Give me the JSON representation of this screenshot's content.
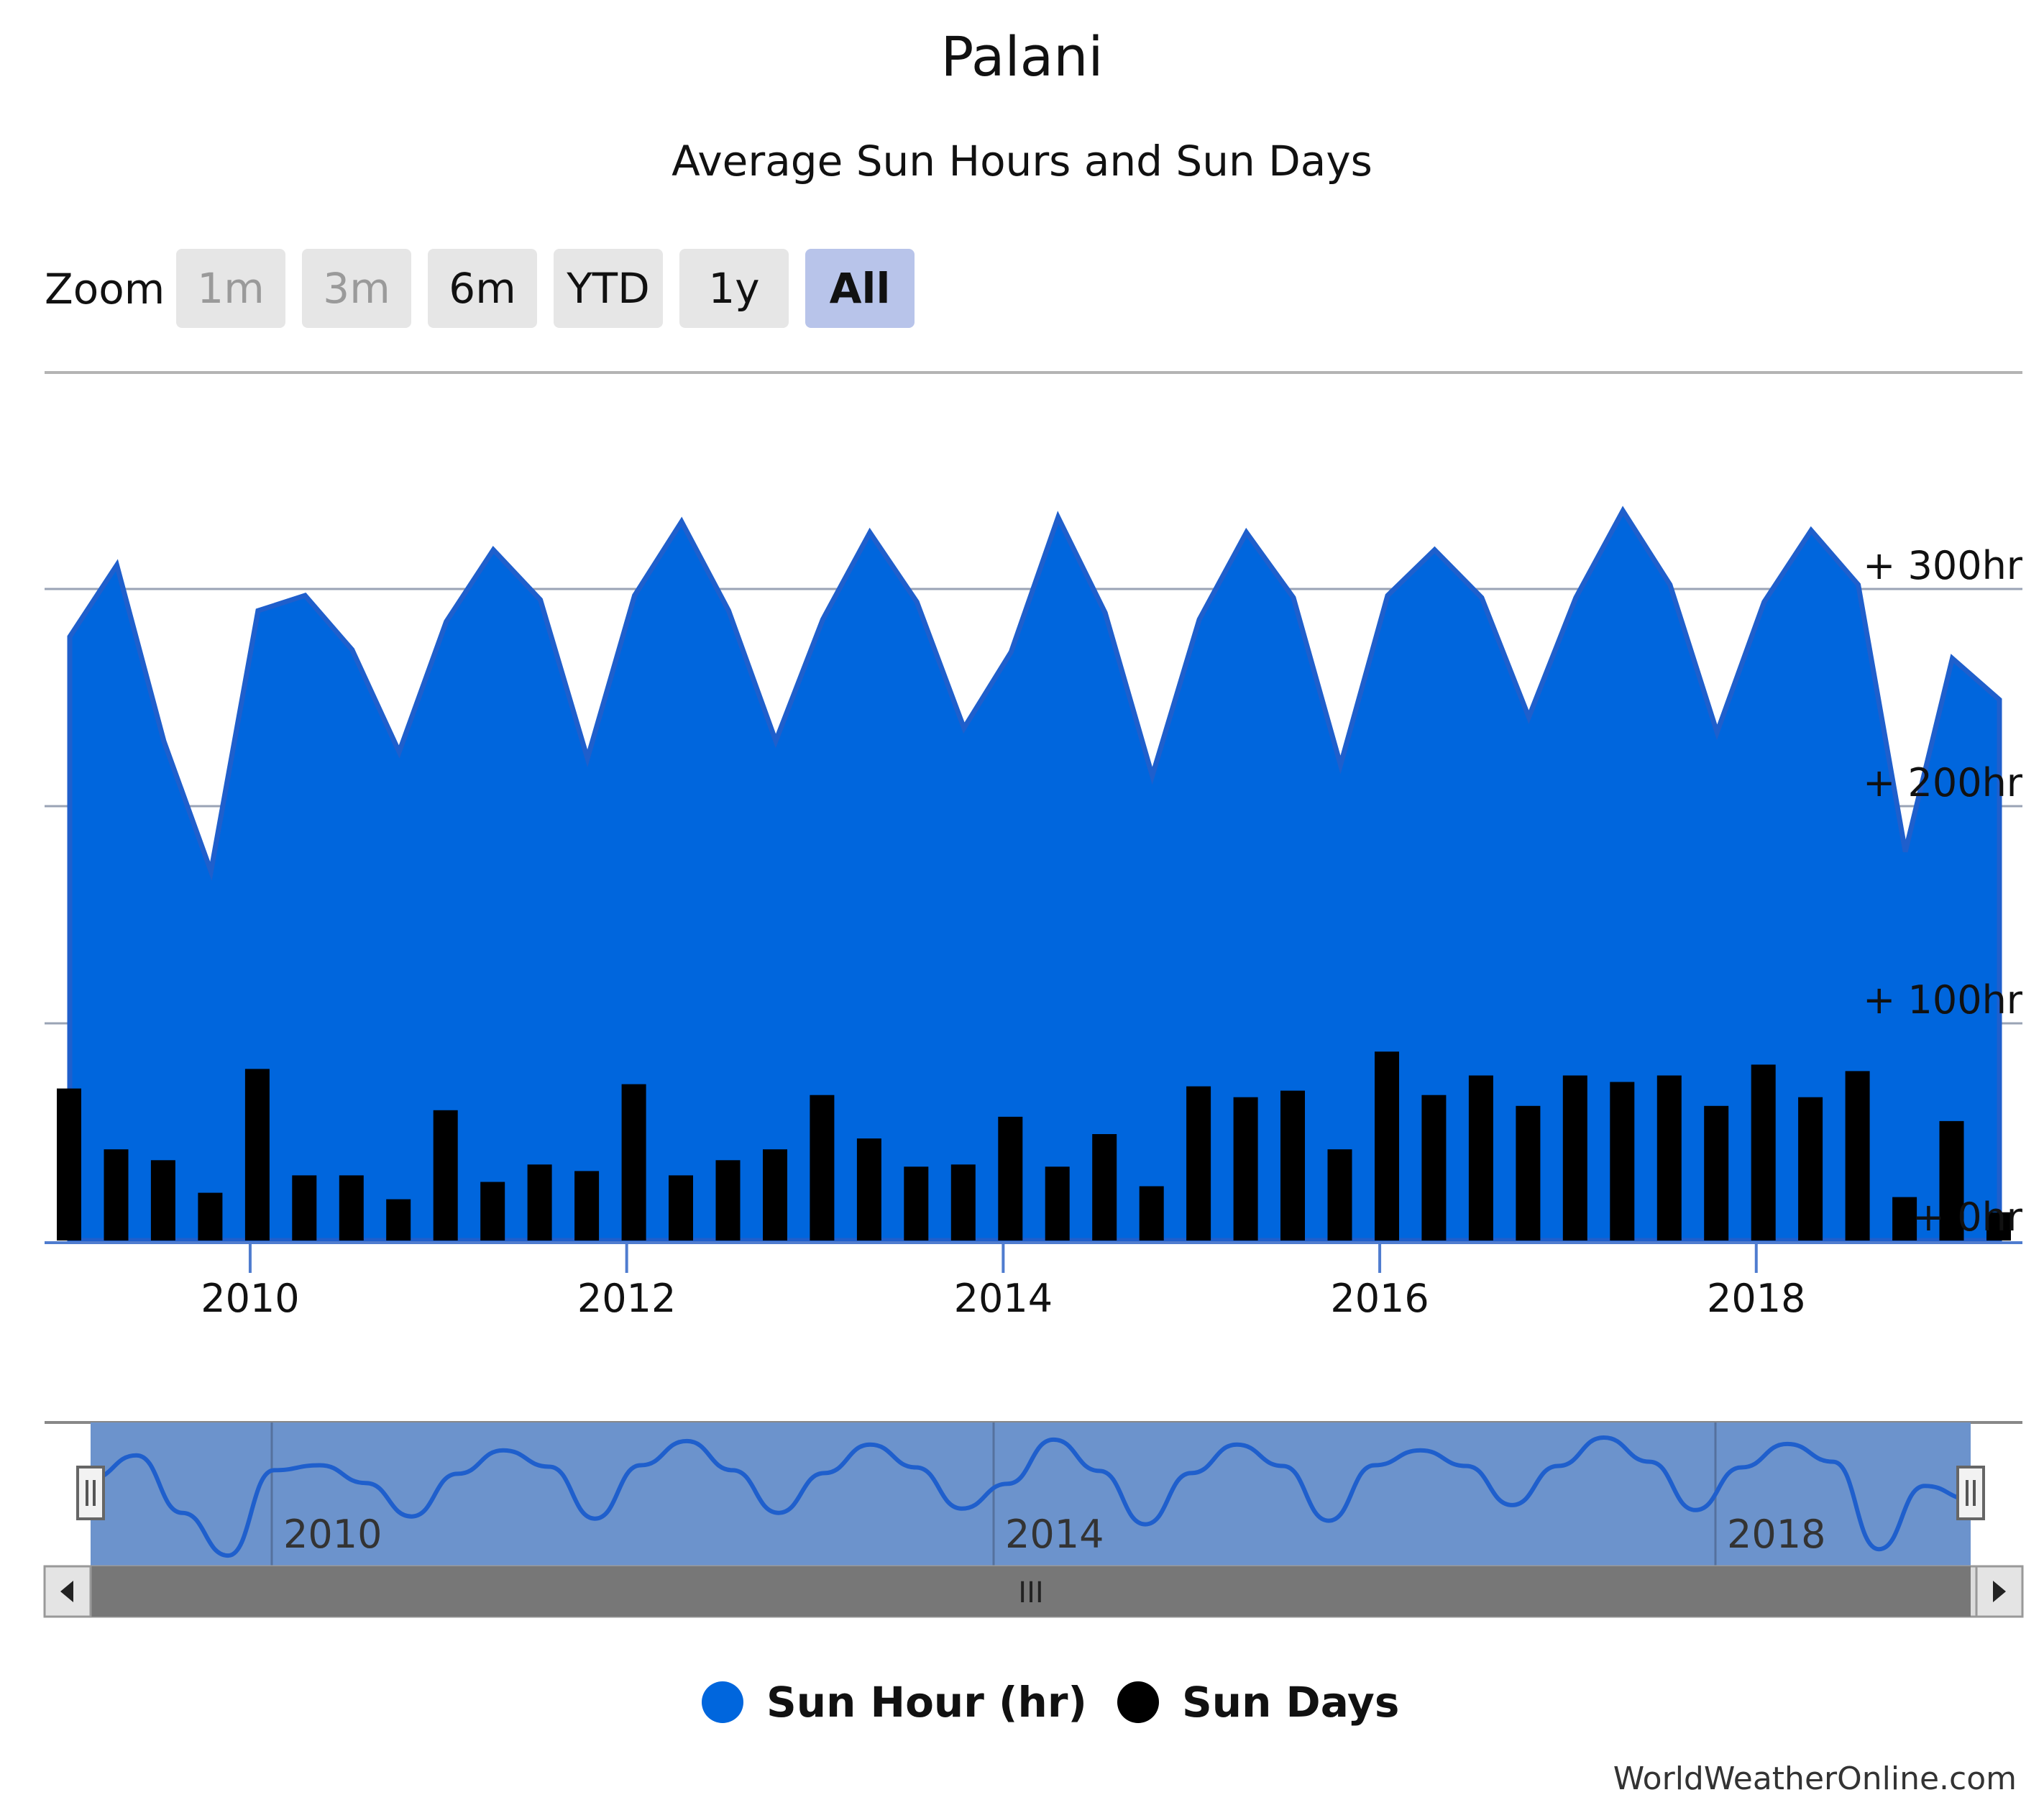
{
  "title": "Palani",
  "subtitle": "Average Sun Hours and Sun Days",
  "zoom": {
    "label": "Zoom",
    "buttons": [
      {
        "label": "1m",
        "state": "disabled"
      },
      {
        "label": "3m",
        "state": "disabled"
      },
      {
        "label": "6m",
        "state": "normal"
      },
      {
        "label": "YTD",
        "state": "normal"
      },
      {
        "label": "1y",
        "state": "normal"
      },
      {
        "label": "All",
        "state": "selected"
      }
    ]
  },
  "navigator": {
    "labels": [
      "2010",
      "2014",
      "2018"
    ],
    "scrollbar_grip": "III"
  },
  "credit": "WorldWeatherOnline.com",
  "colors": {
    "sun_hours_fill": "#0066dd",
    "sun_hours_line": "#1f5fcc",
    "sun_days": "#000000",
    "navigator_fill": "#6c93cc",
    "zoom_selected": "#b8c4ea"
  },
  "chart_data": {
    "type": "area",
    "x_axis": {
      "type": "date",
      "tick_labels": [
        "2010",
        "2012",
        "2014",
        "2016",
        "2018"
      ],
      "range": [
        "2009-01",
        "2019-04"
      ]
    },
    "y_axis": {
      "tick_labels": [
        "0hr",
        "100hr",
        "200hr",
        "300hr"
      ],
      "range": [
        0,
        350
      ],
      "unit": "hr",
      "grid": true
    },
    "legend_position": "bottom",
    "series": [
      {
        "name": "Sun Hour (hr)",
        "type": "area",
        "color": "#0066dd",
        "points": [
          [
            "2009-01",
            278
          ],
          [
            "2009-04",
            311
          ],
          [
            "2009-07",
            230
          ],
          [
            "2009-10",
            170
          ],
          [
            "2010-01",
            290
          ],
          [
            "2010-04",
            297
          ],
          [
            "2010-07",
            272
          ],
          [
            "2010-10",
            225
          ],
          [
            "2011-01",
            285
          ],
          [
            "2011-04",
            318
          ],
          [
            "2011-07",
            295
          ],
          [
            "2011-10",
            222
          ],
          [
            "2012-01",
            297
          ],
          [
            "2012-04",
            331
          ],
          [
            "2012-07",
            290
          ],
          [
            "2012-10",
            230
          ],
          [
            "2013-01",
            286
          ],
          [
            "2013-04",
            326
          ],
          [
            "2013-07",
            294
          ],
          [
            "2013-10",
            236
          ],
          [
            "2014-01",
            271
          ],
          [
            "2014-04",
            333
          ],
          [
            "2014-07",
            289
          ],
          [
            "2014-10",
            214
          ],
          [
            "2015-01",
            286
          ],
          [
            "2015-04",
            326
          ],
          [
            "2015-07",
            296
          ],
          [
            "2015-10",
            219
          ],
          [
            "2016-01",
            297
          ],
          [
            "2016-04",
            318
          ],
          [
            "2016-07",
            296
          ],
          [
            "2016-10",
            241
          ],
          [
            "2017-01",
            296
          ],
          [
            "2017-04",
            336
          ],
          [
            "2017-07",
            302
          ],
          [
            "2017-10",
            234
          ],
          [
            "2018-01",
            294
          ],
          [
            "2018-04",
            327
          ],
          [
            "2018-07",
            302
          ],
          [
            "2018-10",
            179
          ],
          [
            "2019-01",
            268
          ],
          [
            "2019-04",
            249
          ]
        ]
      },
      {
        "name": "Sun Days",
        "type": "bar",
        "color": "#000000",
        "points": [
          [
            "2009-01",
            70
          ],
          [
            "2009-04",
            42
          ],
          [
            "2009-07",
            37
          ],
          [
            "2009-10",
            22
          ],
          [
            "2010-01",
            79
          ],
          [
            "2010-04",
            30
          ],
          [
            "2010-07",
            30
          ],
          [
            "2010-10",
            19
          ],
          [
            "2011-01",
            60
          ],
          [
            "2011-04",
            27
          ],
          [
            "2011-07",
            35
          ],
          [
            "2011-10",
            32
          ],
          [
            "2012-01",
            72
          ],
          [
            "2012-04",
            30
          ],
          [
            "2012-07",
            37
          ],
          [
            "2012-10",
            42
          ],
          [
            "2013-01",
            67
          ],
          [
            "2013-04",
            47
          ],
          [
            "2013-07",
            34
          ],
          [
            "2013-10",
            35
          ],
          [
            "2014-01",
            57
          ],
          [
            "2014-04",
            34
          ],
          [
            "2014-07",
            49
          ],
          [
            "2014-10",
            25
          ],
          [
            "2015-01",
            71
          ],
          [
            "2015-04",
            66
          ],
          [
            "2015-07",
            69
          ],
          [
            "2015-10",
            42
          ],
          [
            "2016-01",
            87
          ],
          [
            "2016-04",
            67
          ],
          [
            "2016-07",
            76
          ],
          [
            "2016-10",
            62
          ],
          [
            "2017-01",
            76
          ],
          [
            "2017-04",
            73
          ],
          [
            "2017-07",
            76
          ],
          [
            "2017-10",
            62
          ],
          [
            "2018-01",
            81
          ],
          [
            "2018-04",
            66
          ],
          [
            "2018-07",
            78
          ],
          [
            "2018-10",
            20
          ],
          [
            "2019-01",
            55
          ],
          [
            "2019-04",
            13
          ]
        ]
      }
    ]
  }
}
